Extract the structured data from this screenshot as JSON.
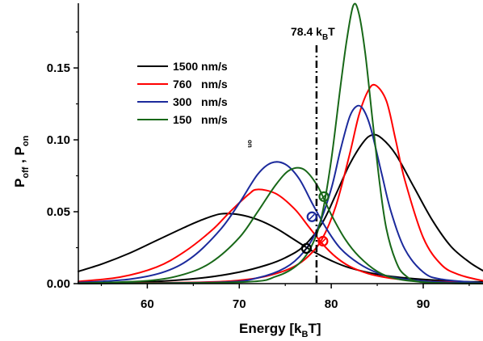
{
  "chart_data": {
    "type": "line",
    "xlabel": {
      "main": "Energy [k",
      "sub": "B",
      "end": "T]"
    },
    "ylabel": {
      "p": "P",
      "off": "off",
      "sep": " , ",
      "p2": "P",
      "on": "on"
    },
    "xlim": [
      52.5,
      96.5
    ],
    "ylim": [
      0,
      0.195
    ],
    "x_ticks": [
      60,
      70,
      80,
      90
    ],
    "x_tick_labels": [
      "60",
      "70",
      "80",
      "90"
    ],
    "y_ticks": [
      0,
      0.05,
      0.1,
      0.15
    ],
    "y_tick_labels": [
      "0.00",
      "0.05",
      "0.10",
      "0.15"
    ],
    "grid": false,
    "legend_position": "top-left",
    "threshold": {
      "x": 78.4,
      "label_main": "78.4 k",
      "label_sub": "B",
      "label_end": "T"
    },
    "stray_text": "on",
    "series": [
      {
        "name": "1500 nm/s",
        "legend_label": "1500 nm/s",
        "color": "#000000",
        "off": {
          "x": [
            52.5,
            55,
            58,
            61,
            64,
            66,
            68,
            70,
            72,
            74,
            76,
            78,
            80,
            82,
            85,
            88,
            91,
            94,
            96.5
          ],
          "y": [
            0.0085,
            0.0135,
            0.021,
            0.03,
            0.039,
            0.0445,
            0.0485,
            0.048,
            0.0445,
            0.0385,
            0.0305,
            0.0225,
            0.016,
            0.011,
            0.0065,
            0.004,
            0.0025,
            0.0015,
            0.0012
          ]
        },
        "on": {
          "x": [
            52.5,
            60,
            66,
            70,
            73,
            75,
            77,
            79,
            80.5,
            82,
            83.5,
            84.5,
            85.5,
            87,
            89,
            91,
            93,
            95,
            96.5
          ],
          "y": [
            0.0003,
            0.0012,
            0.004,
            0.008,
            0.013,
            0.018,
            0.026,
            0.042,
            0.062,
            0.083,
            0.0985,
            0.1035,
            0.101,
            0.09,
            0.067,
            0.044,
            0.026,
            0.015,
            0.009
          ]
        },
        "crossing": {
          "x": 77.3,
          "y": 0.0245
        }
      },
      {
        "name": "760  nm/s",
        "legend_label": "760   nm/s",
        "color": "#ff0000",
        "off": {
          "x": [
            52.5,
            57,
            61,
            64,
            67,
            69,
            71,
            72,
            74,
            76,
            77.5,
            79,
            80.5,
            82,
            84,
            86,
            88,
            91,
            96.5
          ],
          "y": [
            0.0015,
            0.0045,
            0.0115,
            0.022,
            0.037,
            0.05,
            0.062,
            0.0655,
            0.0625,
            0.052,
            0.04,
            0.028,
            0.0185,
            0.012,
            0.007,
            0.0042,
            0.0027,
            0.0015,
            0.0005
          ]
        },
        "on": {
          "x": [
            52.5,
            66,
            71,
            74,
            76,
            77.5,
            79,
            80.5,
            82,
            83,
            84,
            84.8,
            86,
            87,
            88,
            90,
            92,
            94,
            96.5
          ],
          "y": [
            0.0002,
            0.001,
            0.003,
            0.007,
            0.012,
            0.019,
            0.031,
            0.054,
            0.09,
            0.117,
            0.134,
            0.138,
            0.127,
            0.1,
            0.072,
            0.032,
            0.013,
            0.006,
            0.002
          ]
        },
        "crossing": {
          "x": 79.1,
          "y": 0.0295
        }
      },
      {
        "name": "300  nm/s",
        "legend_label": "300   nm/s",
        "color": "#1c2a9c",
        "off": {
          "x": [
            52.5,
            58,
            62,
            65,
            68,
            70,
            72,
            73.5,
            75,
            76.5,
            78,
            79.5,
            81,
            83,
            85,
            87,
            90,
            93,
            96.5
          ],
          "y": [
            0.0008,
            0.003,
            0.0085,
            0.019,
            0.038,
            0.056,
            0.076,
            0.084,
            0.083,
            0.073,
            0.055,
            0.038,
            0.0245,
            0.014,
            0.0075,
            0.004,
            0.0018,
            0.0008,
            0.0003
          ]
        },
        "on": {
          "x": [
            52.5,
            68,
            72,
            75,
            77,
            78.5,
            80,
            81,
            82,
            82.8,
            83.5,
            84.3,
            85.5,
            86.5,
            88,
            90,
            92,
            96.5
          ],
          "y": [
            0.0001,
            0.001,
            0.004,
            0.011,
            0.022,
            0.038,
            0.066,
            0.093,
            0.116,
            0.1235,
            0.121,
            0.108,
            0.076,
            0.05,
            0.024,
            0.008,
            0.003,
            0.0005
          ]
        },
        "crossing": {
          "x": 77.9,
          "y": 0.0465
        }
      },
      {
        "name": "150  nm/s",
        "legend_label": "150   nm/s",
        "color": "#186818",
        "off": {
          "x": [
            52.5,
            60,
            64,
            67,
            70,
            72,
            74,
            75.5,
            77,
            78.5,
            80,
            81.5,
            83,
            85,
            87,
            90,
            93,
            96.5
          ],
          "y": [
            0.0003,
            0.002,
            0.0065,
            0.015,
            0.032,
            0.05,
            0.069,
            0.079,
            0.0795,
            0.068,
            0.048,
            0.031,
            0.019,
            0.0085,
            0.0035,
            0.001,
            0.0003,
            0.0001
          ]
        },
        "on": {
          "x": [
            52.5,
            70,
            74,
            76.5,
            78,
            79,
            80,
            81,
            81.7,
            82.4,
            83,
            83.7,
            84.5,
            85.3,
            86,
            87,
            88,
            90,
            96.5
          ],
          "y": [
            0.0001,
            0.001,
            0.005,
            0.014,
            0.028,
            0.048,
            0.086,
            0.137,
            0.17,
            0.1935,
            0.188,
            0.16,
            0.113,
            0.068,
            0.038,
            0.016,
            0.006,
            0.001,
            0.0001
          ]
        },
        "crossing": {
          "x": 79.2,
          "y": 0.0605
        }
      }
    ]
  }
}
